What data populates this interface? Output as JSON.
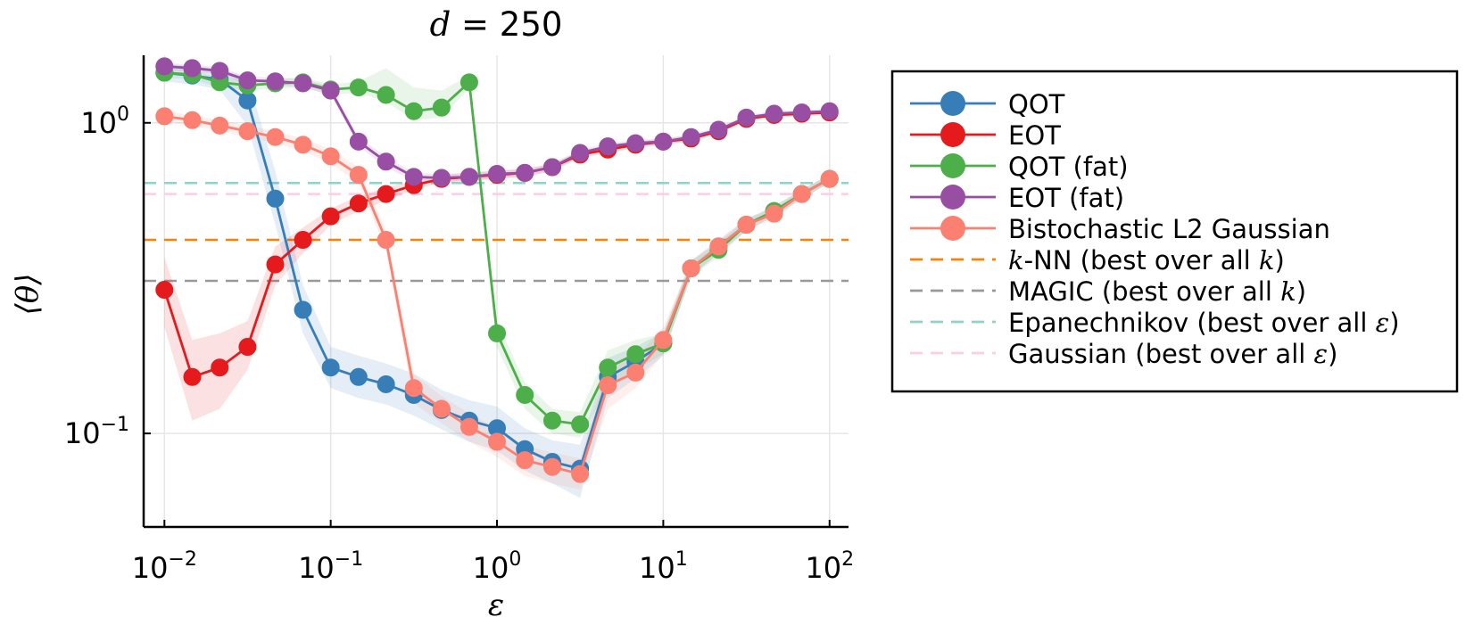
{
  "chart_data": {
    "type": "line",
    "title": "d = 250",
    "title_var": "d",
    "title_rest": " = 250",
    "xlabel": "ε",
    "ylabel": "⟨θ⟩",
    "xscale": "log",
    "yscale": "log",
    "xlim": [
      0.0075,
      130
    ],
    "ylim": [
      0.05,
      1.65
    ],
    "grid": true,
    "legend_position": "right",
    "x_ticks": [
      {
        "value": 0.01,
        "base": "10",
        "exp": "−2"
      },
      {
        "value": 0.1,
        "base": "10",
        "exp": "−1"
      },
      {
        "value": 1,
        "base": "10",
        "exp": "0"
      },
      {
        "value": 10,
        "base": "10",
        "exp": "1"
      },
      {
        "value": 100,
        "base": "10",
        "exp": "2"
      }
    ],
    "y_ticks": [
      {
        "value": 0.1,
        "base": "10",
        "exp": "−1"
      },
      {
        "value": 1,
        "base": "10",
        "exp": "0"
      }
    ],
    "x": [
      0.01,
      0.0147,
      0.0215,
      0.0316,
      0.0464,
      0.0681,
      0.1,
      0.147,
      0.215,
      0.316,
      0.464,
      0.681,
      1,
      1.47,
      2.15,
      3.16,
      4.64,
      6.81,
      10,
      14.7,
      21.5,
      31.6,
      46.4,
      68.1,
      100
    ],
    "series": [
      {
        "name": "QOT",
        "color": "#377eb8",
        "style": "line-marker",
        "values": [
          1.45,
          1.42,
          1.38,
          1.18,
          0.57,
          0.25,
          0.163,
          0.152,
          0.144,
          0.133,
          0.119,
          0.11,
          0.104,
          0.089,
          0.081,
          0.077,
          0.152,
          0.17,
          0.195,
          0.34,
          0.4,
          0.47,
          0.52,
          0.59,
          0.66
        ],
        "band_lower": [
          1.36,
          1.33,
          1.28,
          0.98,
          0.47,
          0.21,
          0.14,
          0.13,
          0.124,
          0.114,
          0.103,
          0.094,
          0.088,
          0.076,
          0.069,
          0.062,
          0.13,
          0.15,
          0.178,
          0.32,
          0.38,
          0.45,
          0.5,
          0.57,
          0.64
        ],
        "band_upper": [
          1.55,
          1.52,
          1.49,
          1.4,
          0.7,
          0.3,
          0.19,
          0.178,
          0.168,
          0.156,
          0.138,
          0.128,
          0.122,
          0.104,
          0.095,
          0.092,
          0.175,
          0.19,
          0.212,
          0.36,
          0.42,
          0.49,
          0.54,
          0.61,
          0.68
        ]
      },
      {
        "name": "EOT",
        "color": "#e41a1c",
        "style": "line-marker",
        "values": [
          0.29,
          0.152,
          0.163,
          0.19,
          0.35,
          0.42,
          0.5,
          0.55,
          0.59,
          0.63,
          0.66,
          0.67,
          0.68,
          0.69,
          0.72,
          0.79,
          0.82,
          0.85,
          0.87,
          0.89,
          0.94,
          1.03,
          1.06,
          1.07,
          1.08
        ],
        "band_lower": [
          0.22,
          0.11,
          0.12,
          0.16,
          0.3,
          0.38,
          0.47,
          0.52,
          0.56,
          0.61,
          0.64,
          0.65,
          0.66,
          0.67,
          0.7,
          0.77,
          0.8,
          0.83,
          0.85,
          0.87,
          0.92,
          1.01,
          1.04,
          1.05,
          1.06
        ],
        "band_upper": [
          0.37,
          0.2,
          0.21,
          0.23,
          0.4,
          0.46,
          0.53,
          0.58,
          0.62,
          0.65,
          0.68,
          0.69,
          0.7,
          0.71,
          0.74,
          0.81,
          0.84,
          0.87,
          0.89,
          0.91,
          0.96,
          1.05,
          1.08,
          1.09,
          1.1
        ]
      },
      {
        "name": "QOT (fat)",
        "color": "#4daf4a",
        "style": "line-marker",
        "values": [
          1.45,
          1.43,
          1.35,
          1.32,
          1.34,
          1.35,
          1.28,
          1.3,
          1.23,
          1.09,
          1.12,
          1.35,
          0.21,
          0.133,
          0.11,
          0.107,
          0.163,
          0.18,
          0.195,
          0.34,
          0.39,
          0.47,
          0.52,
          0.59,
          0.66
        ],
        "band_lower": [
          1.4,
          1.38,
          1.3,
          1.27,
          1.29,
          1.3,
          1.23,
          1.25,
          1.17,
          1.02,
          1.04,
          1.29,
          0.19,
          0.12,
          0.1,
          0.097,
          0.14,
          0.16,
          0.18,
          0.32,
          0.37,
          0.45,
          0.5,
          0.57,
          0.64
        ],
        "band_upper": [
          1.5,
          1.48,
          1.4,
          1.37,
          1.39,
          1.4,
          1.33,
          1.36,
          1.5,
          1.3,
          1.27,
          1.42,
          0.23,
          0.146,
          0.12,
          0.117,
          0.185,
          0.2,
          0.21,
          0.36,
          0.41,
          0.49,
          0.54,
          0.61,
          0.68
        ]
      },
      {
        "name": "EOT (fat)",
        "color": "#984ea3",
        "style": "line-marker",
        "values": [
          1.52,
          1.5,
          1.47,
          1.37,
          1.36,
          1.34,
          1.27,
          0.87,
          0.75,
          0.67,
          0.665,
          0.67,
          0.685,
          0.69,
          0.72,
          0.8,
          0.84,
          0.86,
          0.87,
          0.9,
          0.95,
          1.04,
          1.07,
          1.08,
          1.09
        ],
        "band_lower": [
          1.48,
          1.46,
          1.43,
          1.33,
          1.32,
          1.3,
          1.23,
          0.84,
          0.72,
          0.65,
          0.645,
          0.65,
          0.665,
          0.67,
          0.7,
          0.78,
          0.82,
          0.84,
          0.85,
          0.88,
          0.93,
          1.02,
          1.05,
          1.06,
          1.07
        ],
        "band_upper": [
          1.56,
          1.54,
          1.51,
          1.41,
          1.4,
          1.38,
          1.31,
          0.9,
          0.78,
          0.69,
          0.685,
          0.69,
          0.705,
          0.71,
          0.74,
          0.82,
          0.86,
          0.88,
          0.89,
          0.92,
          0.97,
          1.06,
          1.09,
          1.1,
          1.11
        ]
      },
      {
        "name": "Bistochastic L2 Gaussian",
        "color": "#fb8072",
        "style": "line-marker",
        "values": [
          1.05,
          1.02,
          0.98,
          0.94,
          0.9,
          0.85,
          0.78,
          0.68,
          0.42,
          0.14,
          0.12,
          0.105,
          0.094,
          0.082,
          0.078,
          0.074,
          0.143,
          0.157,
          0.2,
          0.34,
          0.4,
          0.47,
          0.51,
          0.59,
          0.66
        ],
        "band_lower": [
          1.01,
          0.98,
          0.94,
          0.9,
          0.86,
          0.81,
          0.74,
          0.64,
          0.39,
          0.125,
          0.108,
          0.094,
          0.084,
          0.073,
          0.069,
          0.066,
          0.12,
          0.14,
          0.18,
          0.32,
          0.38,
          0.45,
          0.49,
          0.57,
          0.64
        ],
        "band_upper": [
          1.09,
          1.06,
          1.02,
          0.98,
          0.94,
          0.89,
          0.82,
          0.72,
          0.45,
          0.155,
          0.132,
          0.116,
          0.104,
          0.091,
          0.087,
          0.083,
          0.166,
          0.175,
          0.22,
          0.36,
          0.42,
          0.49,
          0.53,
          0.61,
          0.68
        ]
      },
      {
        "name": "k-NN (best over all k)",
        "color": "#ff7f00",
        "style": "dashed",
        "value": 0.42
      },
      {
        "name": "MAGIC (best over all k)",
        "color": "#999999",
        "style": "dashed",
        "value": 0.31
      },
      {
        "name": "Epanechnikov (best over all ε)",
        "color": "#8dd3c7",
        "style": "dashed",
        "value": 0.64
      },
      {
        "name": "Gaussian (best over all ε)",
        "color": "#fccde5",
        "style": "dashed",
        "value": 0.59
      }
    ]
  },
  "legend": {
    "items": [
      {
        "type": "marker",
        "color": "#377eb8",
        "parts": [
          {
            "t": "QOT"
          }
        ]
      },
      {
        "type": "marker",
        "color": "#e41a1c",
        "parts": [
          {
            "t": "EOT"
          }
        ]
      },
      {
        "type": "marker",
        "color": "#4daf4a",
        "parts": [
          {
            "t": "QOT (fat)"
          }
        ]
      },
      {
        "type": "marker",
        "color": "#984ea3",
        "parts": [
          {
            "t": "EOT (fat)"
          }
        ]
      },
      {
        "type": "marker",
        "color": "#fb8072",
        "parts": [
          {
            "t": "Bistochastic L2 Gaussian"
          }
        ]
      },
      {
        "type": "dash",
        "color": "#ff7f00",
        "parts": [
          {
            "t": "k",
            "m": true
          },
          {
            "t": "-NN (best over all "
          },
          {
            "t": "k",
            "m": true
          },
          {
            "t": ")"
          }
        ]
      },
      {
        "type": "dash",
        "color": "#999999",
        "parts": [
          {
            "t": "MAGIC (best over all "
          },
          {
            "t": "k",
            "m": true
          },
          {
            "t": ")"
          }
        ]
      },
      {
        "type": "dash",
        "color": "#8dd3c7",
        "parts": [
          {
            "t": "Epanechnikov (best over all "
          },
          {
            "t": "ε",
            "m": true
          },
          {
            "t": ")"
          }
        ]
      },
      {
        "type": "dash",
        "color": "#fccde5",
        "parts": [
          {
            "t": "Gaussian (best over all "
          },
          {
            "t": "ε",
            "m": true
          },
          {
            "t": ")"
          }
        ]
      }
    ]
  }
}
